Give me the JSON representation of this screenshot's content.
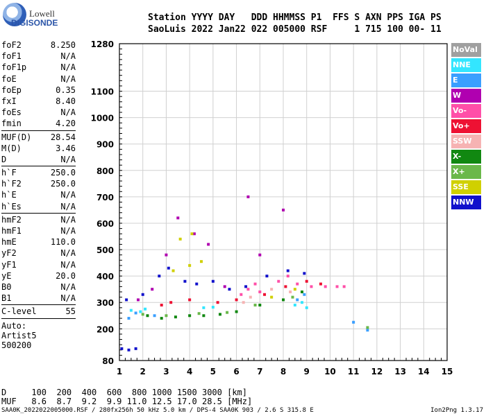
{
  "logo": {
    "line1": "Lowell",
    "line2": "DIGISONDE"
  },
  "header": {
    "row1": "Station YYYY DAY   DDD HHMMSS P1  FFS S AXN PPS IGA PS",
    "row2": "SaoLuis 2022 Jan22 022 005000 RSF     1 715 100 00- 11"
  },
  "params": [
    {
      "name": "foF2",
      "value": "8.250"
    },
    {
      "name": "foF1",
      "value": "N/A"
    },
    {
      "name": "foF1p",
      "value": "N/A"
    },
    {
      "name": "foE",
      "value": "N/A"
    },
    {
      "name": "foEp",
      "value": "0.35"
    },
    {
      "name": "fxI",
      "value": "8.40"
    },
    {
      "name": "foEs",
      "value": "N/A"
    },
    {
      "name": "fmin",
      "value": "4.20"
    },
    {
      "sep": true
    },
    {
      "name": "MUF(D)",
      "value": "28.54"
    },
    {
      "name": "M(D)",
      "value": "3.46"
    },
    {
      "name": "D",
      "value": "N/A"
    },
    {
      "sep": true
    },
    {
      "name": "h`F",
      "value": "250.0"
    },
    {
      "name": "h`F2",
      "value": "250.0"
    },
    {
      "name": "h`E",
      "value": "N/A"
    },
    {
      "name": "h`Es",
      "value": "N/A"
    },
    {
      "sep": true
    },
    {
      "name": "hmF2",
      "value": "N/A"
    },
    {
      "name": "hmF1",
      "value": "N/A"
    },
    {
      "name": "hmE",
      "value": "110.0"
    },
    {
      "name": "yF2",
      "value": "N/A"
    },
    {
      "name": "yF1",
      "value": "N/A"
    },
    {
      "name": "yE",
      "value": "20.0"
    },
    {
      "name": "B0",
      "value": "N/A"
    },
    {
      "name": "B1",
      "value": "N/A"
    },
    {
      "sep": true
    },
    {
      "name": "C-level",
      "value": "55"
    },
    {
      "sep": true
    }
  ],
  "auto": {
    "line1": "Auto:",
    "line2": "Artist5",
    "line3": "500200"
  },
  "dtable": {
    "row1": "D     100  200  400  600  800 1000 1500 3000 [km]",
    "row2": "MUF   8.6  8.7  9.2  9.9 11.0 12.5 17.0 28.5 [MHz]"
  },
  "footer": {
    "left": "SAA0K_2022022005000.RSF / 280fx256h 50 kHz 5.0 km / DPS-4 SAA0K 903 / 2.6 S 315.8 E",
    "right": "Ion2Png 1.3.17"
  },
  "legend": [
    {
      "label": "NoVal",
      "color": "#a0a0a0"
    },
    {
      "label": "NNE",
      "color": "#33e6ff"
    },
    {
      "label": "E",
      "color": "#3a9fff"
    },
    {
      "label": "W",
      "color": "#b000b0"
    },
    {
      "label": "Vo-",
      "color": "#ff4fa8"
    },
    {
      "label": "Vo+",
      "color": "#ee1133"
    },
    {
      "label": "SSW",
      "color": "#f6b3b3"
    },
    {
      "label": "X-",
      "color": "#118811"
    },
    {
      "label": "X+",
      "color": "#6ab84a"
    },
    {
      "label": "SSE",
      "color": "#d0d000"
    },
    {
      "label": "NNW",
      "color": "#1111cc"
    }
  ],
  "chart_data": {
    "type": "scatter",
    "title": "",
    "xlabel": "",
    "ylabel": "",
    "xlim": [
      1,
      15
    ],
    "ylim": [
      80,
      1280
    ],
    "x_ticks": [
      "1",
      "2",
      "3",
      "4",
      "5",
      "6",
      "7",
      "8",
      "9",
      "10",
      "11",
      "12",
      "13",
      "14",
      "15"
    ],
    "y_ticks": [
      "80",
      "200",
      "300",
      "400",
      "500",
      "600",
      "700",
      "800",
      "900",
      "1000",
      "1100",
      "1280"
    ],
    "grid": true,
    "series": [
      {
        "name": "NNE",
        "color": "#33e6ff",
        "points": [
          [
            1.5,
            270
          ],
          [
            1.9,
            265
          ],
          [
            2.1,
            275
          ],
          [
            8.5,
            290
          ],
          [
            8.8,
            300
          ],
          [
            9.0,
            280
          ],
          [
            5.0,
            282
          ],
          [
            4.6,
            280
          ]
        ]
      },
      {
        "name": "E",
        "color": "#3a9fff",
        "points": [
          [
            1.4,
            240
          ],
          [
            1.7,
            260
          ],
          [
            2.5,
            250
          ],
          [
            8.6,
            310
          ],
          [
            8.9,
            330
          ],
          [
            11.6,
            195
          ],
          [
            11.0,
            225
          ]
        ]
      },
      {
        "name": "W",
        "color": "#b000b0",
        "points": [
          [
            1.8,
            310
          ],
          [
            2.4,
            350
          ],
          [
            3.0,
            480
          ],
          [
            3.5,
            620
          ],
          [
            4.2,
            560
          ],
          [
            4.8,
            520
          ],
          [
            5.5,
            360
          ],
          [
            6.5,
            700
          ],
          [
            7.0,
            480
          ],
          [
            8.0,
            650
          ]
        ]
      },
      {
        "name": "Vo-",
        "color": "#ff4fa8",
        "points": [
          [
            6.2,
            330
          ],
          [
            6.5,
            350
          ],
          [
            6.8,
            370
          ],
          [
            7.0,
            340
          ],
          [
            7.8,
            380
          ],
          [
            8.2,
            400
          ],
          [
            8.6,
            370
          ],
          [
            9.2,
            360
          ],
          [
            9.8,
            360
          ],
          [
            10.3,
            360
          ],
          [
            10.6,
            360
          ]
        ]
      },
      {
        "name": "Vo+",
        "color": "#ee1133",
        "points": [
          [
            2.8,
            290
          ],
          [
            3.2,
            300
          ],
          [
            4.0,
            310
          ],
          [
            5.2,
            300
          ],
          [
            6.0,
            310
          ],
          [
            7.2,
            330
          ],
          [
            8.1,
            360
          ],
          [
            9.0,
            380
          ],
          [
            9.6,
            370
          ]
        ]
      },
      {
        "name": "SSW",
        "color": "#f6b3b3",
        "points": [
          [
            6.3,
            300
          ],
          [
            6.6,
            320
          ],
          [
            7.5,
            350
          ],
          [
            8.3,
            340
          ]
        ]
      },
      {
        "name": "X-",
        "color": "#118811",
        "points": [
          [
            2.2,
            250
          ],
          [
            2.8,
            240
          ],
          [
            3.4,
            245
          ],
          [
            4.0,
            250
          ],
          [
            4.6,
            250
          ],
          [
            5.3,
            255
          ],
          [
            6.0,
            265
          ],
          [
            7.0,
            290
          ],
          [
            8.0,
            310
          ],
          [
            8.8,
            340
          ]
        ]
      },
      {
        "name": "X+",
        "color": "#6ab84a",
        "points": [
          [
            2.0,
            255
          ],
          [
            3.0,
            250
          ],
          [
            4.4,
            258
          ],
          [
            5.6,
            262
          ],
          [
            6.8,
            290
          ],
          [
            8.4,
            320
          ],
          [
            11.6,
            205
          ]
        ]
      },
      {
        "name": "SSE",
        "color": "#d0d000",
        "points": [
          [
            3.3,
            420
          ],
          [
            4.0,
            440
          ],
          [
            4.5,
            455
          ],
          [
            3.6,
            540
          ],
          [
            4.1,
            560
          ],
          [
            7.5,
            320
          ],
          [
            8.5,
            350
          ]
        ]
      },
      {
        "name": "NNW",
        "color": "#1111cc",
        "points": [
          [
            1.1,
            125
          ],
          [
            1.4,
            120
          ],
          [
            1.7,
            125
          ],
          [
            1.3,
            310
          ],
          [
            2.0,
            330
          ],
          [
            2.7,
            400
          ],
          [
            3.1,
            430
          ],
          [
            3.8,
            380
          ],
          [
            4.3,
            370
          ],
          [
            5.0,
            380
          ],
          [
            5.7,
            350
          ],
          [
            6.4,
            360
          ],
          [
            7.3,
            400
          ],
          [
            8.2,
            420
          ],
          [
            8.9,
            410
          ]
        ]
      }
    ]
  }
}
